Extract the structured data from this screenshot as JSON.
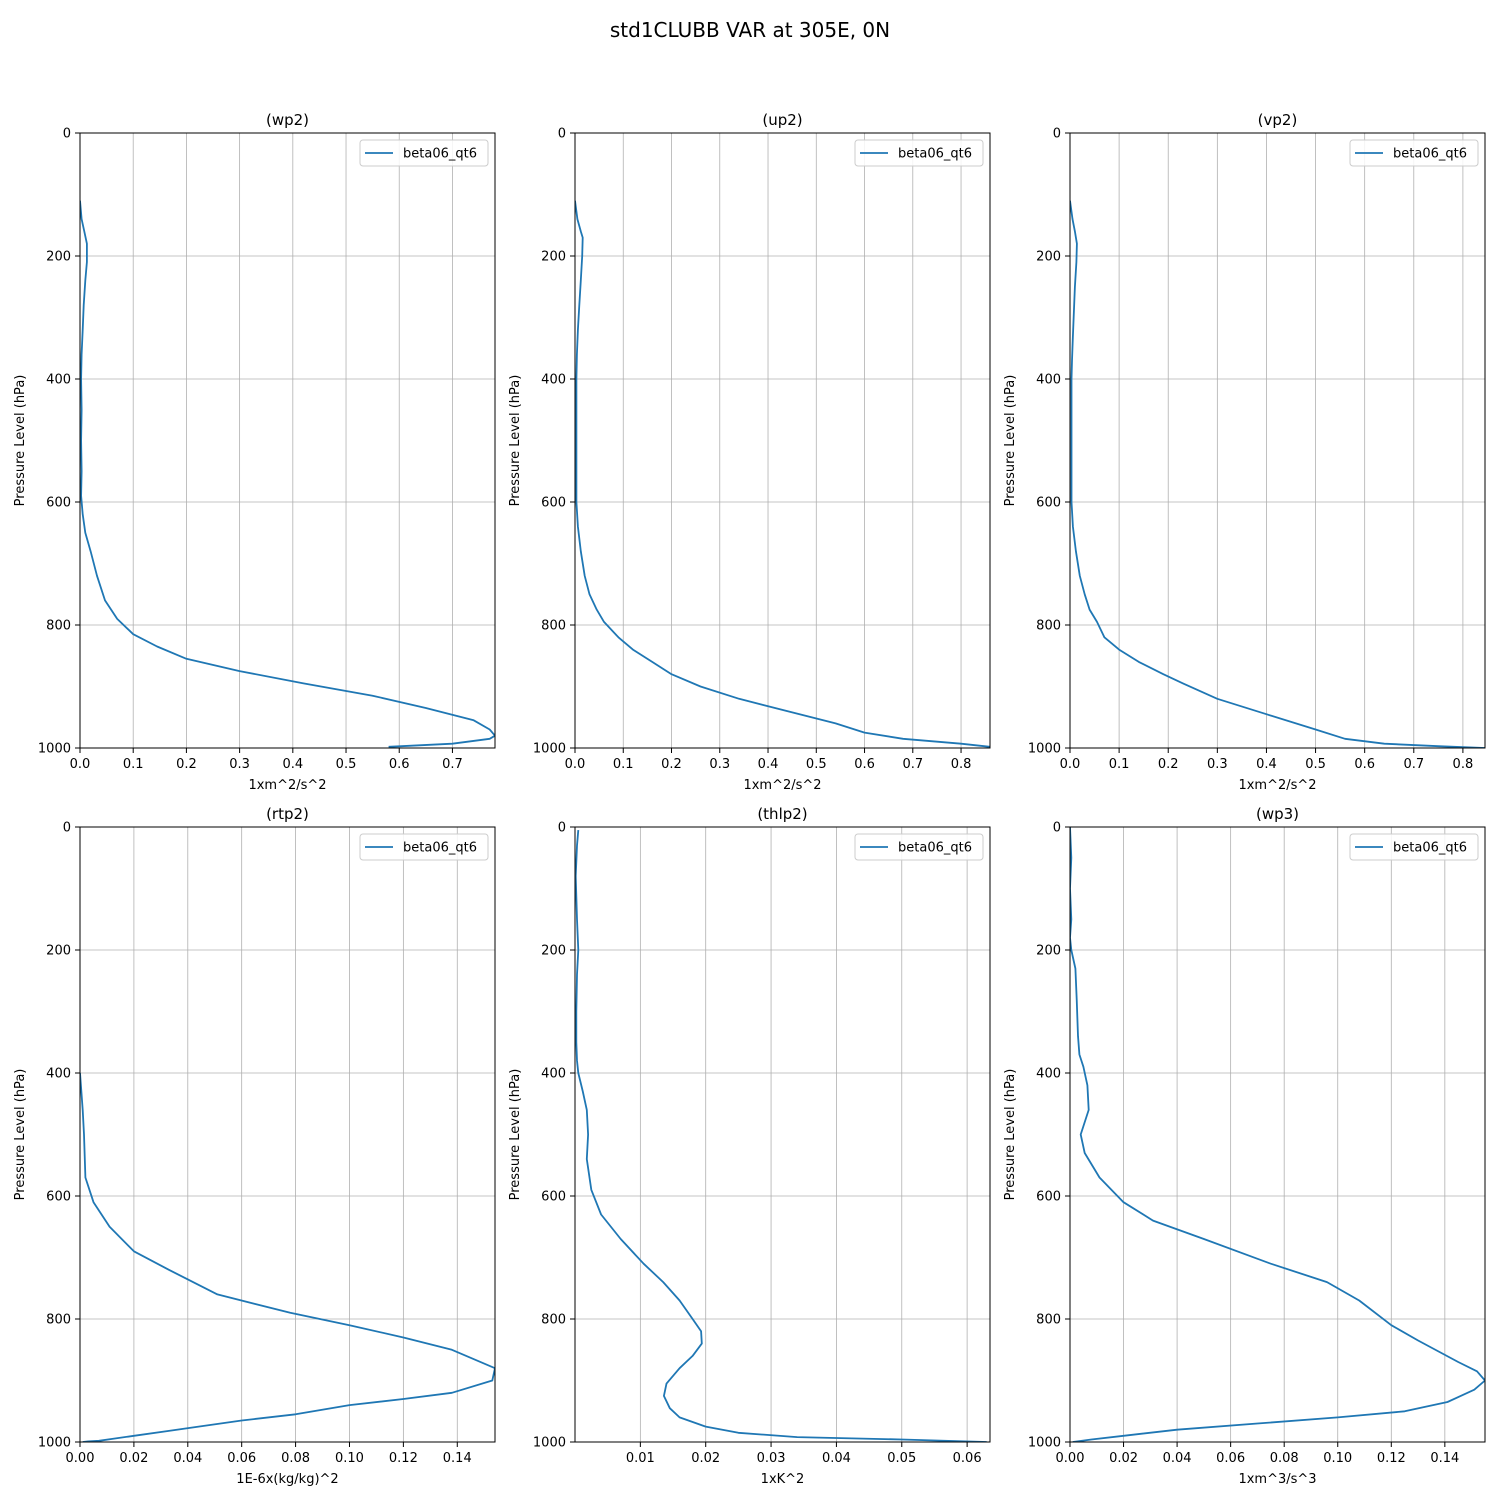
{
  "figure_title": "std1CLUBB VAR at 305E, 0N",
  "colors": {
    "series": "#1f77b4",
    "grid": "#b0b0b0"
  },
  "chart_data": [
    {
      "type": "line",
      "title": "(wp2)",
      "xlabel": "1xm^2/s^2",
      "ylabel": "Pressure Level (hPa)",
      "xlim": [
        0.0,
        0.78
      ],
      "ylim": [
        1000,
        0
      ],
      "xticks": [
        0.0,
        0.1,
        0.2,
        0.3,
        0.4,
        0.5,
        0.6,
        0.7
      ],
      "xtick_labels": [
        "0.0",
        "0.1",
        "0.2",
        "0.3",
        "0.4",
        "0.5",
        "0.6",
        "0.7"
      ],
      "yticks": [
        0,
        200,
        400,
        600,
        800,
        1000
      ],
      "ytick_labels": [
        "0",
        "200",
        "400",
        "600",
        "800",
        "1000"
      ],
      "grid": true,
      "legend_position": "top-right",
      "series": [
        {
          "name": "beta06_qt6",
          "x": [
            0.0,
            0.003,
            0.008,
            0.013,
            0.013,
            0.01,
            0.007,
            0.005,
            0.003,
            0.002,
            0.003,
            0.002,
            0.003,
            0.002,
            0.005,
            0.01,
            0.02,
            0.032,
            0.047,
            0.07,
            0.1,
            0.145,
            0.2,
            0.3,
            0.42,
            0.55,
            0.65,
            0.74,
            0.77,
            0.78,
            0.77,
            0.7,
            0.58
          ],
          "y": [
            110,
            140,
            160,
            180,
            210,
            240,
            280,
            320,
            360,
            400,
            450,
            500,
            550,
            590,
            620,
            650,
            680,
            720,
            760,
            790,
            815,
            835,
            855,
            875,
            895,
            915,
            935,
            955,
            970,
            980,
            985,
            993,
            998
          ]
        }
      ]
    },
    {
      "type": "line",
      "title": "(up2)",
      "xlabel": "1xm^2/s^2",
      "ylabel": "Pressure Level (hPa)",
      "xlim": [
        0.0,
        0.86
      ],
      "ylim": [
        1000,
        0
      ],
      "xticks": [
        0.0,
        0.1,
        0.2,
        0.3,
        0.4,
        0.5,
        0.6,
        0.7,
        0.8
      ],
      "xtick_labels": [
        "0.0",
        "0.1",
        "0.2",
        "0.3",
        "0.4",
        "0.5",
        "0.6",
        "0.7",
        "0.8"
      ],
      "yticks": [
        0,
        200,
        400,
        600,
        800,
        1000
      ],
      "ytick_labels": [
        "0",
        "200",
        "400",
        "600",
        "800",
        "1000"
      ],
      "grid": true,
      "legend_position": "top-right",
      "series": [
        {
          "name": "beta06_qt6",
          "x": [
            0.0,
            0.005,
            0.012,
            0.016,
            0.015,
            0.012,
            0.009,
            0.006,
            0.004,
            0.003,
            0.003,
            0.003,
            0.003,
            0.003,
            0.006,
            0.012,
            0.02,
            0.03,
            0.045,
            0.06,
            0.09,
            0.12,
            0.16,
            0.2,
            0.26,
            0.34,
            0.44,
            0.54,
            0.6,
            0.68,
            0.8,
            0.86
          ],
          "y": [
            110,
            140,
            160,
            170,
            200,
            240,
            280,
            320,
            360,
            400,
            450,
            500,
            550,
            600,
            640,
            680,
            720,
            750,
            775,
            795,
            820,
            840,
            860,
            880,
            900,
            920,
            940,
            960,
            975,
            985,
            993,
            998
          ]
        }
      ]
    },
    {
      "type": "line",
      "title": "(vp2)",
      "xlabel": "1xm^2/s^2",
      "ylabel": "Pressure Level (hPa)",
      "xlim": [
        0.0,
        0.845
      ],
      "ylim": [
        1000,
        0
      ],
      "xticks": [
        0.0,
        0.1,
        0.2,
        0.3,
        0.4,
        0.5,
        0.6,
        0.7,
        0.8
      ],
      "xtick_labels": [
        "0.0",
        "0.1",
        "0.2",
        "0.3",
        "0.4",
        "0.5",
        "0.6",
        "0.7",
        "0.8"
      ],
      "yticks": [
        0,
        200,
        400,
        600,
        800,
        1000
      ],
      "ytick_labels": [
        "0",
        "200",
        "400",
        "600",
        "800",
        "1000"
      ],
      "grid": true,
      "legend_position": "top-right",
      "series": [
        {
          "name": "beta06_qt6",
          "x": [
            0.0,
            0.005,
            0.01,
            0.014,
            0.013,
            0.01,
            0.008,
            0.006,
            0.004,
            0.003,
            0.003,
            0.003,
            0.003,
            0.003,
            0.006,
            0.012,
            0.02,
            0.03,
            0.04,
            0.055,
            0.07,
            0.1,
            0.14,
            0.19,
            0.23,
            0.3,
            0.4,
            0.5,
            0.56,
            0.64,
            0.75,
            0.845
          ],
          "y": [
            110,
            140,
            160,
            180,
            210,
            250,
            290,
            330,
            370,
            400,
            450,
            500,
            550,
            600,
            640,
            680,
            720,
            750,
            775,
            795,
            820,
            840,
            860,
            880,
            895,
            920,
            945,
            970,
            985,
            993,
            997,
            1000
          ]
        }
      ]
    },
    {
      "type": "line",
      "title": "(rtp2)",
      "xlabel": "1E-6x(kg/kg)^2",
      "ylabel": "Pressure Level (hPa)",
      "xlim": [
        0.0,
        0.154
      ],
      "ylim": [
        1000,
        0
      ],
      "xticks": [
        0.0,
        0.02,
        0.04,
        0.06,
        0.08,
        0.1,
        0.12,
        0.14
      ],
      "xtick_labels": [
        "0.00",
        "0.02",
        "0.04",
        "0.06",
        "0.08",
        "0.10",
        "0.12",
        "0.14"
      ],
      "yticks": [
        0,
        200,
        400,
        600,
        800,
        1000
      ],
      "ytick_labels": [
        "0",
        "200",
        "400",
        "600",
        "800",
        "1000"
      ],
      "grid": true,
      "legend_position": "top-right",
      "series": [
        {
          "name": "beta06_qt6",
          "x": [
            0.0,
            0.001,
            0.0015,
            0.002,
            0.005,
            0.011,
            0.02,
            0.033,
            0.051,
            0.078,
            0.1,
            0.12,
            0.138,
            0.154,
            0.153,
            0.138,
            0.12,
            0.1,
            0.08,
            0.06,
            0.044,
            0.033,
            0.02,
            0.012,
            0.007,
            0.003,
            0.001
          ],
          "y": [
            400,
            460,
            500,
            570,
            610,
            650,
            690,
            720,
            760,
            790,
            810,
            830,
            850,
            880,
            900,
            920,
            930,
            940,
            955,
            965,
            975,
            982,
            990,
            995,
            998,
            999,
            1000
          ]
        }
      ]
    },
    {
      "type": "line",
      "title": "(thlp2)",
      "xlabel": "1xK^2",
      "ylabel": "Pressure Level (hPa)",
      "xlim": [
        0.0,
        0.0635
      ],
      "ylim": [
        1000,
        0
      ],
      "xticks": [
        0.01,
        0.02,
        0.03,
        0.04,
        0.05,
        0.06
      ],
      "xtick_labels": [
        "0.01",
        "0.02",
        "0.03",
        "0.04",
        "0.05",
        "0.06"
      ],
      "yticks": [
        0,
        200,
        400,
        600,
        800,
        1000
      ],
      "ytick_labels": [
        "0",
        "200",
        "400",
        "600",
        "800",
        "1000"
      ],
      "grid": true,
      "legend_position": "top-right",
      "series": [
        {
          "name": "beta06_qt6",
          "x": [
            0.0005,
            0.0003,
            0.0001,
            0.0003,
            0.0005,
            0.0003,
            0.0002,
            0.0002,
            0.0003,
            0.0005,
            0.0012,
            0.0018,
            0.002,
            0.0018,
            0.0025,
            0.004,
            0.007,
            0.0105,
            0.0135,
            0.016,
            0.018,
            0.0193,
            0.0194,
            0.018,
            0.016,
            0.014,
            0.0136,
            0.0145,
            0.016,
            0.02,
            0.025,
            0.034,
            0.05,
            0.063
          ],
          "y": [
            5,
            30,
            80,
            150,
            200,
            240,
            300,
            350,
            380,
            400,
            430,
            460,
            500,
            540,
            590,
            630,
            670,
            710,
            740,
            770,
            800,
            820,
            840,
            860,
            880,
            905,
            925,
            945,
            960,
            975,
            985,
            992,
            996,
            1000
          ]
        }
      ]
    },
    {
      "type": "line",
      "title": "(wp3)",
      "xlabel": "1xm^3/s^3",
      "ylabel": "Pressure Level (hPa)",
      "xlim": [
        0.0,
        0.155
      ],
      "ylim": [
        1000,
        0
      ],
      "xticks": [
        0.0,
        0.02,
        0.04,
        0.06,
        0.08,
        0.1,
        0.12,
        0.14
      ],
      "xtick_labels": [
        "0.00",
        "0.02",
        "0.04",
        "0.06",
        "0.08",
        "0.10",
        "0.12",
        "0.14"
      ],
      "yticks": [
        0,
        200,
        400,
        600,
        800,
        1000
      ],
      "ytick_labels": [
        "0",
        "200",
        "400",
        "600",
        "800",
        "1000"
      ],
      "grid": true,
      "legend_position": "top-right",
      "series": [
        {
          "name": "beta06_qt6",
          "x": [
            0.0,
            0.0005,
            0.0,
            0.0005,
            0.0,
            0.0005,
            0.002,
            0.0025,
            0.003,
            0.0035,
            0.005,
            0.0065,
            0.007,
            0.004,
            0.0055,
            0.011,
            0.02,
            0.031,
            0.05,
            0.075,
            0.096,
            0.108,
            0.12,
            0.13,
            0.145,
            0.152,
            0.155,
            0.151,
            0.141,
            0.125,
            0.1,
            0.07,
            0.04,
            0.02,
            0.008,
            0.001
          ],
          "y": [
            0,
            50,
            100,
            150,
            180,
            200,
            230,
            280,
            340,
            370,
            390,
            420,
            460,
            500,
            530,
            570,
            610,
            640,
            670,
            710,
            740,
            770,
            810,
            835,
            870,
            885,
            900,
            915,
            935,
            950,
            960,
            970,
            980,
            990,
            996,
            1000
          ]
        }
      ]
    }
  ]
}
